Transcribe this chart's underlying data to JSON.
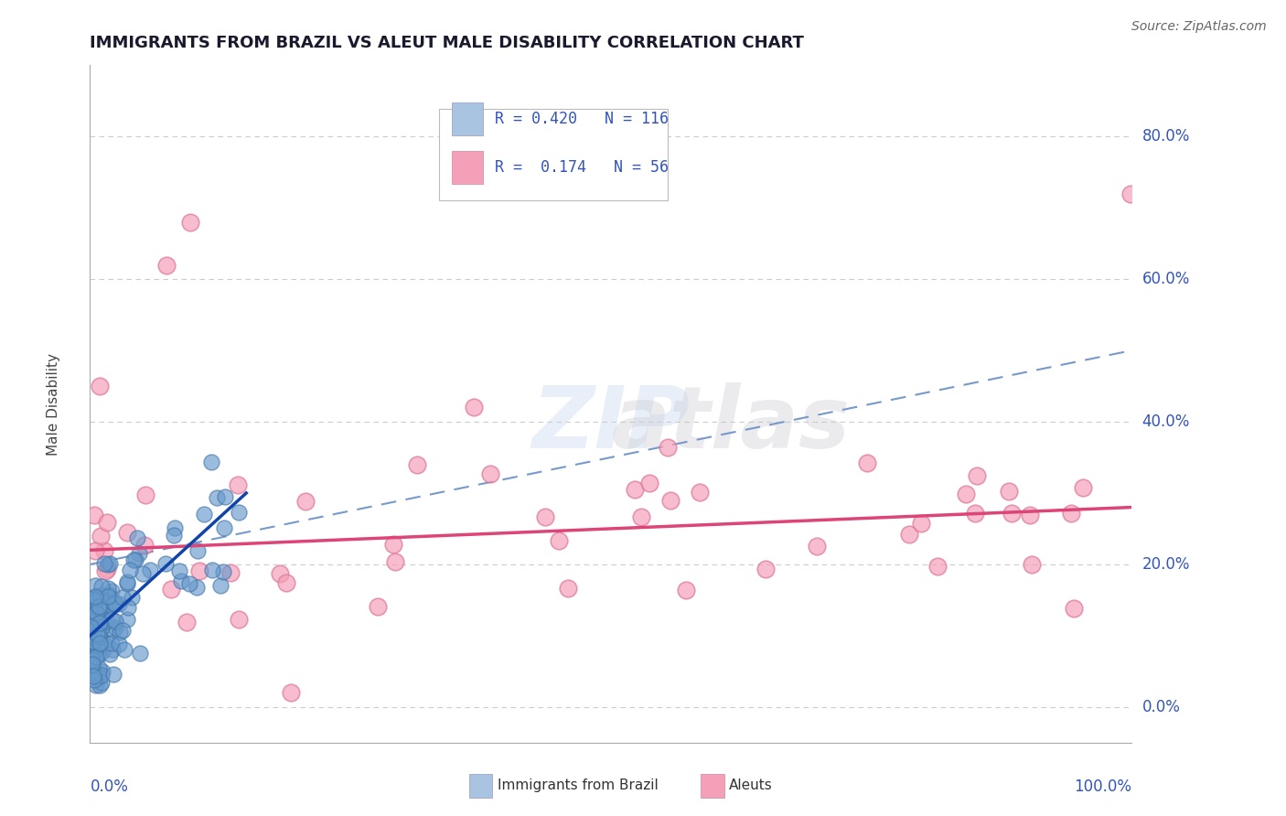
{
  "title": "IMMIGRANTS FROM BRAZIL VS ALEUT MALE DISABILITY CORRELATION CHART",
  "source": "Source: ZipAtlas.com",
  "ylabel": "Male Disability",
  "legend_line1": "R = 0.420   N = 116",
  "legend_line2": "R =  0.174   N = 56",
  "legend_blue_color": "#a8c4e0",
  "legend_pink_color": "#f4a0b8",
  "title_color": "#1a1a2e",
  "source_color": "#666666",
  "axis_label_color": "#3355bb",
  "grid_color": "#cccccc",
  "background_color": "#ffffff",
  "blue_scatter_color": "#6699cc",
  "blue_scatter_edge": "#4477aa",
  "pink_scatter_color": "#f4a0b8",
  "pink_scatter_edge": "#dd7799",
  "blue_line_color": "#1144aa",
  "pink_line_color": "#dd4477",
  "blue_dashed_color": "#7799cc",
  "xlim": [
    0,
    100
  ],
  "ylim": [
    -5,
    90
  ],
  "yticks": [
    0,
    20,
    40,
    60,
    80
  ],
  "ytick_labels": [
    "0.0%",
    "20.0%",
    "40.0%",
    "60.0%",
    "80.0%"
  ],
  "xtick_left": "0.0%",
  "xtick_right": "100.0%",
  "blue_trend_x0": 0,
  "blue_trend_y0": 10,
  "blue_trend_x1": 15,
  "blue_trend_y1": 30,
  "pink_trend_x0": 0,
  "pink_trend_y0": 22,
  "pink_trend_x1": 100,
  "pink_trend_y1": 28,
  "dashed_trend_x0": 0,
  "dashed_trend_y0": 20,
  "dashed_trend_x1": 100,
  "dashed_trend_y1": 50
}
